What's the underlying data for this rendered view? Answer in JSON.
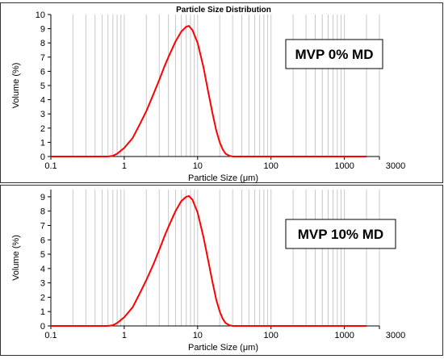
{
  "chart_data": [
    {
      "type": "line",
      "title": "Particle Size Distribution",
      "xlabel": "Particle Size (μm)",
      "ylabel": "Volume (%)",
      "xscale": "log",
      "xlim": [
        0.1,
        3000
      ],
      "ylim": [
        0,
        10
      ],
      "xticks": [
        "0.1",
        "1",
        "10",
        "100",
        "1000",
        "3000"
      ],
      "yticks": [
        "0",
        "1",
        "2",
        "3",
        "4",
        "5",
        "6",
        "7",
        "8",
        "9",
        "10"
      ],
      "grid": true,
      "annotation": "MVP 0% MD",
      "series": [
        {
          "color": "#ff0000",
          "x": [
            0.1,
            0.6,
            0.7,
            0.8,
            1.0,
            1.3,
            1.6,
            2.0,
            2.5,
            3.0,
            3.5,
            4.0,
            5.0,
            6.0,
            7.0,
            7.6,
            8.5,
            10.0,
            12.0,
            14.0,
            16.0,
            18.0,
            20.0,
            22.0,
            24.0,
            27.0,
            30.0,
            40.0,
            100.0,
            1000.0,
            2000.0
          ],
          "y": [
            0,
            0,
            0.05,
            0.2,
            0.6,
            1.3,
            2.2,
            3.2,
            4.4,
            5.4,
            6.3,
            7.0,
            8.1,
            8.8,
            9.15,
            9.2,
            8.9,
            8.0,
            6.3,
            4.5,
            3.0,
            1.8,
            1.0,
            0.5,
            0.2,
            0.05,
            0,
            0,
            0,
            0,
            0
          ]
        }
      ]
    },
    {
      "type": "line",
      "xlabel": "Particle Size (μm)",
      "ylabel": "Volume (%)",
      "xscale": "log",
      "xlim": [
        0.1,
        3000
      ],
      "ylim": [
        0,
        9.5
      ],
      "xticks": [
        "0.1",
        "1",
        "10",
        "100",
        "1000",
        "3000"
      ],
      "yticks": [
        "0",
        "1",
        "2",
        "3",
        "4",
        "5",
        "6",
        "7",
        "8",
        "9"
      ],
      "grid": true,
      "annotation": "MVP 10% MD",
      "series": [
        {
          "color": "#ff0000",
          "x": [
            0.1,
            0.6,
            0.7,
            0.8,
            1.0,
            1.3,
            1.6,
            2.0,
            2.5,
            3.0,
            3.5,
            4.0,
            5.0,
            6.0,
            7.0,
            7.6,
            8.5,
            10.0,
            12.0,
            14.0,
            16.0,
            18.0,
            20.0,
            22.0,
            24.0,
            27.0,
            30.0,
            40.0,
            100.0,
            1000.0,
            2000.0
          ],
          "y": [
            0,
            0,
            0.05,
            0.2,
            0.6,
            1.3,
            2.2,
            3.2,
            4.3,
            5.3,
            6.2,
            6.9,
            8.0,
            8.7,
            9.0,
            9.05,
            8.8,
            7.9,
            6.2,
            4.5,
            3.0,
            1.8,
            1.0,
            0.5,
            0.2,
            0.05,
            0,
            0,
            0,
            0,
            0
          ]
        }
      ]
    }
  ]
}
